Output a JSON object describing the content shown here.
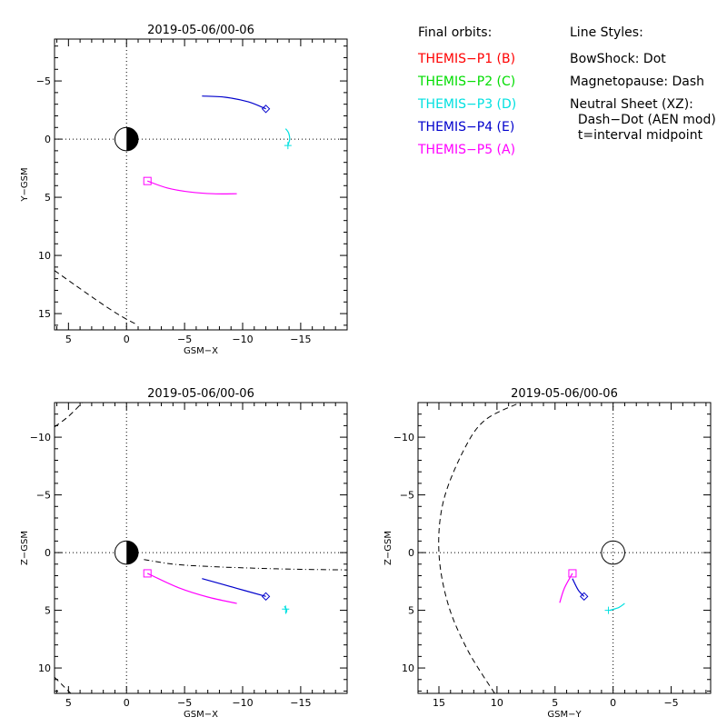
{
  "legend": {
    "orbits_title": "Final orbits:",
    "probes": [
      {
        "label": "THEMIS−P1 (B)",
        "color": "#ff0000"
      },
      {
        "label": "THEMIS−P2 (C)",
        "color": "#00dd00"
      },
      {
        "label": "THEMIS−P3 (D)",
        "color": "#00e0e0"
      },
      {
        "label": "THEMIS−P4 (E)",
        "color": "#0000cc"
      },
      {
        "label": "THEMIS−P5 (A)",
        "color": "#ff00ff"
      }
    ],
    "styles_title": "Line Styles:",
    "styles": [
      "BowShock: Dot",
      "Magnetopause: Dash",
      "Neutral Sheet (XZ):",
      "  Dash−Dot (AEN mod)",
      "  t=interval midpoint"
    ]
  },
  "chart_data": [
    {
      "type": "line",
      "title": "2019-05-06/00-06",
      "xlabel": "GSM−X",
      "ylabel": "Y−GSM",
      "xlim": [
        6.2,
        -19.0
      ],
      "ylim": [
        -8.6,
        16.4
      ],
      "xticks": [
        5,
        0,
        -5,
        -10,
        -15
      ],
      "xtick_labels": [
        "5",
        "0",
        "−5",
        "−10",
        "−15"
      ],
      "yticks": [
        -5,
        0,
        5,
        10,
        15
      ],
      "ytick_labels": [
        "−5",
        "0",
        "5",
        "10",
        "15"
      ],
      "earth": true,
      "series": [
        {
          "color": "#0000cc",
          "points": [
            [
              -6.5,
              -3.7
            ],
            [
              -8.5,
              -3.6
            ],
            [
              -10.5,
              -3.2
            ],
            [
              -12.0,
              -2.6
            ]
          ],
          "marker": "diamond",
          "marker_at": [
            -12.0,
            -2.6
          ]
        },
        {
          "color": "#00e0e0",
          "points": [
            [
              -13.7,
              -0.9
            ],
            [
              -13.95,
              -0.55
            ],
            [
              -14.05,
              0.0
            ],
            [
              -13.9,
              0.55
            ]
          ],
          "marker": "plus",
          "marker_at": [
            -13.9,
            0.55
          ]
        },
        {
          "color": "#ff00ff",
          "points": [
            [
              -1.8,
              3.6
            ],
            [
              -3.5,
              4.2
            ],
            [
              -5.5,
              4.55
            ],
            [
              -7.5,
              4.7
            ],
            [
              -9.5,
              4.7
            ]
          ],
          "marker": "square",
          "marker_at": [
            -1.8,
            3.6
          ]
        }
      ],
      "dashed": [
        [
          [
            6.2,
            11.3
          ],
          [
            4.5,
            12.5
          ],
          [
            2.5,
            13.9
          ],
          [
            0.5,
            15.2
          ],
          [
            -1.0,
            16.0
          ]
        ]
      ]
    },
    {
      "type": "line",
      "title": "2019-05-06/00-06",
      "xlabel": "GSM−X",
      "ylabel": "Z−GSM",
      "xlim": [
        6.2,
        -19.0
      ],
      "ylim": [
        -13.0,
        12.2
      ],
      "xticks": [
        5,
        0,
        -5,
        -10,
        -15
      ],
      "xtick_labels": [
        "5",
        "0",
        "−5",
        "−10",
        "−15"
      ],
      "yticks": [
        10,
        5,
        0,
        -5,
        -10
      ],
      "ytick_labels": [
        "10",
        "5",
        "0",
        "−5",
        "−10"
      ],
      "earth": true,
      "series": [
        {
          "color": "#0000cc",
          "points": [
            [
              -6.5,
              2.25
            ],
            [
              -9.5,
              3.1
            ],
            [
              -12.0,
              3.8
            ]
          ],
          "marker": "diamond",
          "marker_at": [
            -12.0,
            3.8
          ]
        },
        {
          "color": "#00e0e0",
          "points": [
            [
              -13.6,
              4.65
            ],
            [
              -13.8,
              5.0
            ],
            [
              -13.7,
              5.3
            ]
          ],
          "marker": "plus",
          "marker_at": [
            -13.7,
            4.9
          ]
        },
        {
          "color": "#ff00ff",
          "points": [
            [
              -1.8,
              1.8
            ],
            [
              -4.5,
              3.05
            ],
            [
              -7.0,
              3.85
            ],
            [
              -9.5,
              4.4
            ]
          ],
          "marker": "square",
          "marker_at": [
            -1.8,
            1.8
          ]
        }
      ],
      "dashdot": [
        [
          [
            -1.5,
            0.6
          ],
          [
            -4.0,
            1.0
          ],
          [
            -7.0,
            1.2
          ],
          [
            -11.0,
            1.35
          ],
          [
            -15.0,
            1.45
          ],
          [
            -19.0,
            1.5
          ]
        ]
      ],
      "dashed": [
        [
          [
            6.2,
            10.8
          ],
          [
            5.5,
            11.5
          ],
          [
            4.8,
            12.2
          ]
        ],
        [
          [
            6.2,
            -10.9
          ],
          [
            5.0,
            -11.8
          ],
          [
            3.8,
            -13.0
          ]
        ]
      ]
    },
    {
      "type": "line",
      "title": "2019-05-06/00-06",
      "xlabel": "GSM−Y",
      "ylabel": "Z−GSM",
      "xlim": [
        16.8,
        -8.4
      ],
      "ylim": [
        -13.0,
        12.2
      ],
      "xticks": [
        15,
        10,
        5,
        0,
        -5
      ],
      "xtick_labels": [
        "15",
        "10",
        "5",
        "0",
        "−5"
      ],
      "yticks": [
        10,
        5,
        0,
        -5,
        -10
      ],
      "ytick_labels": [
        "10",
        "5",
        "0",
        "−5",
        "−10"
      ],
      "earth": false,
      "series": [
        {
          "color": "#0000cc",
          "points": [
            [
              2.5,
              3.8
            ],
            [
              3.0,
              3.25
            ],
            [
              3.5,
              2.25
            ]
          ],
          "marker": "diamond",
          "marker_at": [
            2.5,
            3.8
          ]
        },
        {
          "color": "#00e0e0",
          "points": [
            [
              0.3,
              5.0
            ],
            [
              -0.5,
              4.75
            ],
            [
              -1.0,
              4.4
            ]
          ],
          "marker": "plus",
          "marker_at": [
            0.4,
            5.0
          ]
        },
        {
          "color": "#ff00ff",
          "points": [
            [
              4.6,
              4.35
            ],
            [
              4.2,
              3.1
            ],
            [
              3.5,
              1.8
            ]
          ],
          "marker": "square",
          "marker_at": [
            3.5,
            1.8
          ]
        }
      ],
      "dashed": [
        [
          [
            10.2,
            12.2
          ],
          [
            12.5,
            8.5
          ],
          [
            14.2,
            4.5
          ],
          [
            15.0,
            0.0
          ],
          [
            14.6,
            -4.5
          ],
          [
            12.8,
            -9.0
          ],
          [
            11.0,
            -11.5
          ],
          [
            8.0,
            -13.0
          ]
        ]
      ]
    }
  ]
}
